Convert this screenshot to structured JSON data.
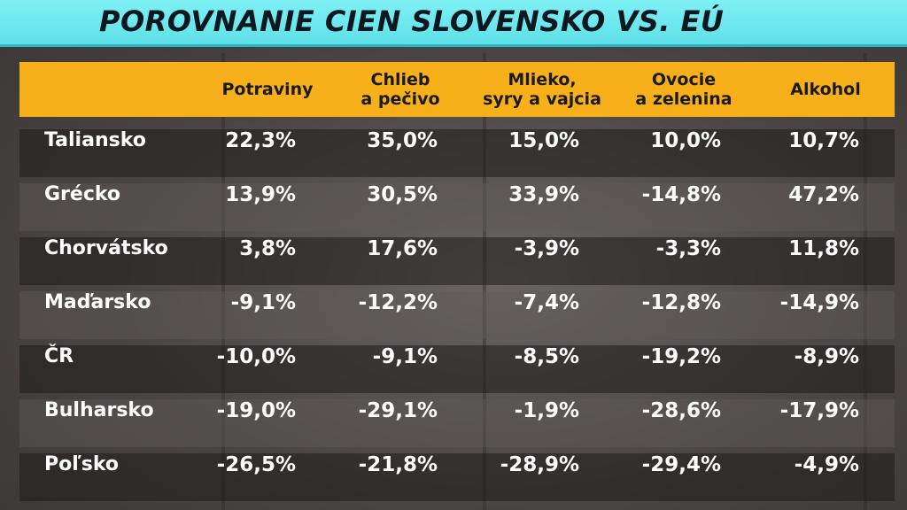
{
  "title": "POROVNANIE CIEN SLOVENSKO VS. EÚ",
  "colors": {
    "title_bg": "#6ee8ee",
    "header_bg": "#f7b01a",
    "text": "#ffffff"
  },
  "chart_data": {
    "type": "table",
    "title": "POROVNANIE CIEN SLOVENSKO VS. EÚ",
    "columns": [
      {
        "line1": "Potraviny",
        "line2": ""
      },
      {
        "line1": "Chlieb",
        "line2": "a pečivo"
      },
      {
        "line1": "Mlieko,",
        "line2": "syry a vajcia"
      },
      {
        "line1": "Ovocie",
        "line2": "a zelenina"
      },
      {
        "line1": "Alkohol",
        "line2": ""
      }
    ],
    "rows": [
      {
        "country": "Taliansko",
        "values": [
          "22,3%",
          "35,0%",
          "15,0%",
          "10,0%",
          "10,7%"
        ]
      },
      {
        "country": "Grécko",
        "values": [
          "13,9%",
          "30,5%",
          "33,9%",
          "-14,8%",
          "47,2%"
        ]
      },
      {
        "country": "Chorvátsko",
        "values": [
          "3,8%",
          "17,6%",
          "-3,9%",
          "-3,3%",
          "11,8%"
        ]
      },
      {
        "country": "Maďarsko",
        "values": [
          "-9,1%",
          "-12,2%",
          "-7,4%",
          "-12,8%",
          "-14,9%"
        ]
      },
      {
        "country": "ČR",
        "values": [
          "-10,0%",
          "-9,1%",
          "-8,5%",
          "-19,2%",
          "-8,9%"
        ]
      },
      {
        "country": "Bulharsko",
        "values": [
          "-19,0%",
          "-29,1%",
          "-1,9%",
          "-28,6%",
          "-17,9%"
        ]
      },
      {
        "country": "Poľsko",
        "values": [
          "-26,5%",
          "-21,8%",
          "-28,9%",
          "-29,4%",
          "-4,9%"
        ]
      }
    ]
  }
}
